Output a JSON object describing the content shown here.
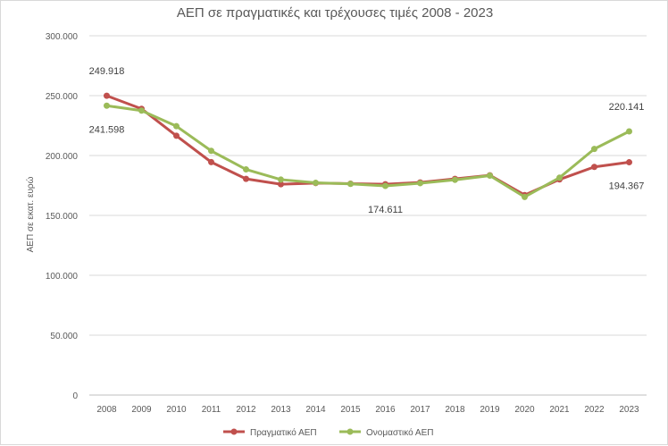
{
  "chart_data": {
    "type": "line",
    "title": "ΑΕΠ σε πραγματικές και τρέχουσες τιμές 2008 - 2023",
    "ylabel": "ΑΕΠ σε εκατ. ευρώ",
    "xlabel": "",
    "ylim": [
      0,
      300000
    ],
    "yticks": [
      "0",
      "50.000",
      "100.000",
      "150.000",
      "200.000",
      "250.000",
      "300.000"
    ],
    "ytick_values": [
      0,
      50000,
      100000,
      150000,
      200000,
      250000,
      300000
    ],
    "categories": [
      "2008",
      "2009",
      "2010",
      "2011",
      "2012",
      "2013",
      "2014",
      "2015",
      "2016",
      "2017",
      "2018",
      "2019",
      "2020",
      "2021",
      "2022",
      "2023"
    ],
    "series": [
      {
        "name": "Πραγματικό ΑΕΠ",
        "color": "#c0504d",
        "values": [
          249918,
          239000,
          216500,
          194500,
          180500,
          176000,
          177000,
          176500,
          176000,
          177500,
          180500,
          183500,
          167000,
          180000,
          190500,
          194367
        ]
      },
      {
        "name": "Ονομαστικό ΑΕΠ",
        "color": "#9bbb59",
        "values": [
          241598,
          237500,
          224500,
          203900,
          188400,
          179900,
          177200,
          176300,
          174611,
          176900,
          179700,
          183200,
          165400,
          181500,
          205500,
          220141
        ]
      }
    ],
    "data_labels": [
      {
        "text": "249.918",
        "series": 0,
        "index": 0,
        "pos": "above"
      },
      {
        "text": "241.598",
        "series": 1,
        "index": 0,
        "pos": "below"
      },
      {
        "text": "174.611",
        "series": 1,
        "index": 8,
        "pos": "below"
      },
      {
        "text": "220.141",
        "series": 1,
        "index": 15,
        "pos": "above"
      },
      {
        "text": "194.367",
        "series": 0,
        "index": 15,
        "pos": "below"
      }
    ],
    "grid": true,
    "legend_position": "bottom"
  }
}
